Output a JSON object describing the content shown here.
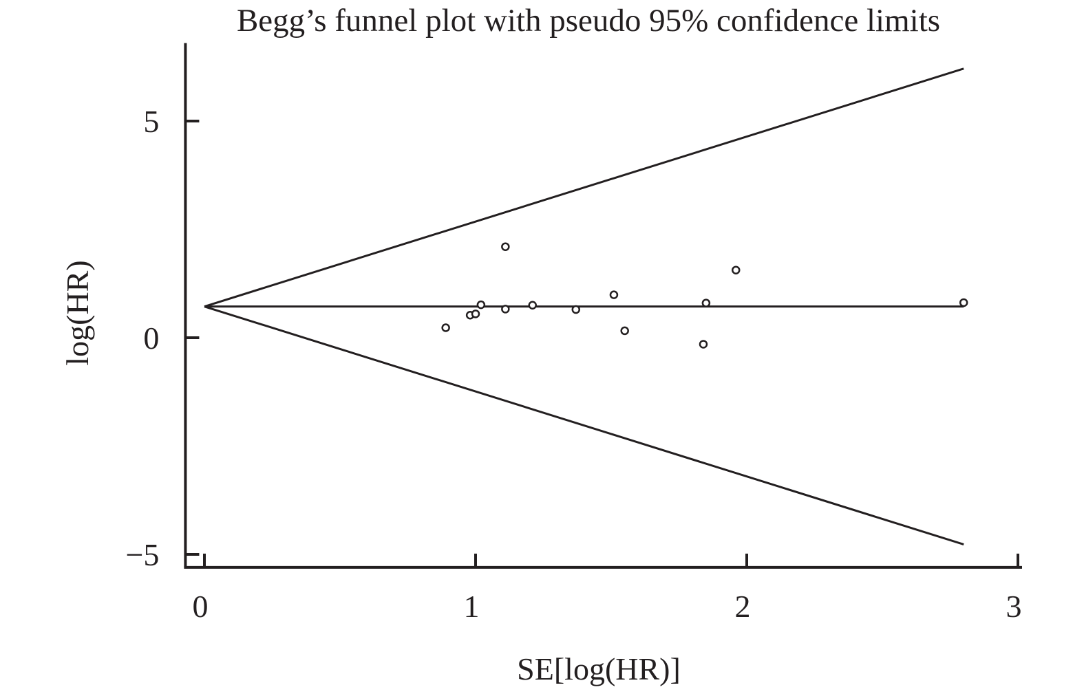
{
  "chart_data": {
    "type": "scatter",
    "title": "Begg’s funnel plot with pseudo 95% confidence limits",
    "xlabel": "SE[log(HR)]",
    "ylabel": "log(HR)",
    "xlim": [
      -0.07,
      3.0
    ],
    "ylim": [
      -5.3,
      6.8
    ],
    "xticks": [
      0,
      1,
      2,
      3
    ],
    "yticks": [
      -5,
      0,
      5
    ],
    "xtick_labels": [
      "0",
      "1",
      "2",
      "3"
    ],
    "ytick_labels": [
      "−5",
      "0",
      "5"
    ],
    "grid": false,
    "legend": "none",
    "pooled_estimate": 0.72,
    "confidence_limits": {
      "x": [
        0,
        2.8
      ],
      "upper": [
        0.72,
        6.21
      ],
      "lower": [
        0.72,
        -4.77
      ]
    },
    "reference_line": {
      "x": [
        0,
        2.8
      ],
      "y": [
        0.72,
        0.72
      ]
    },
    "points": [
      {
        "x": 0.89,
        "y": 0.23
      },
      {
        "x": 0.98,
        "y": 0.52
      },
      {
        "x": 1.0,
        "y": 0.55
      },
      {
        "x": 1.02,
        "y": 0.76
      },
      {
        "x": 1.11,
        "y": 2.1
      },
      {
        "x": 1.11,
        "y": 0.66
      },
      {
        "x": 1.21,
        "y": 0.75
      },
      {
        "x": 1.37,
        "y": 0.65
      },
      {
        "x": 1.51,
        "y": 0.99
      },
      {
        "x": 1.55,
        "y": 0.16
      },
      {
        "x": 1.84,
        "y": -0.15
      },
      {
        "x": 1.85,
        "y": 0.8
      },
      {
        "x": 1.96,
        "y": 1.56
      },
      {
        "x": 2.8,
        "y": 0.81
      }
    ],
    "colors": {
      "ink": "#231f20",
      "background": "#ffffff"
    }
  }
}
